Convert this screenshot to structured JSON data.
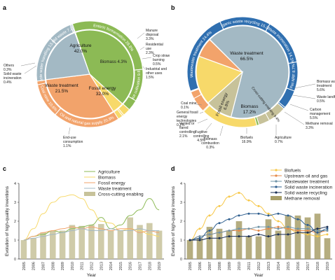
{
  "panels": [
    "a",
    "b",
    "c",
    "d"
  ],
  "chart_data": [
    {
      "panel": "a",
      "type": "pie",
      "inner": [
        {
          "label": "Agriculture",
          "value": "42.0%",
          "pct": 42.0,
          "color": "#8cba55"
        },
        {
          "label": "Biomass",
          "value": "4.3%",
          "pct": 4.3,
          "color": "#f7d96a"
        },
        {
          "label": "Fossil energy",
          "value": "32.0%",
          "pct": 32.0,
          "color": "#f2a36b"
        },
        {
          "label": "Waste treatment",
          "value": "21.5%",
          "pct": 21.5,
          "color": "#a3b9c4"
        }
      ],
      "outer": [
        {
          "label": "Enteric fermentation 28.8%",
          "pct": 28.8,
          "color": "#8cba55",
          "ring": true
        },
        {
          "label": "Rice cultivation 9.8%",
          "pct": 9.8,
          "color": "#8cba55",
          "ring": true
        },
        {
          "label": "Manure disposal 3.3%",
          "pct": 3.3,
          "color": "#8cba55"
        },
        {
          "label": "Residential use 2.3%",
          "pct": 2.3,
          "color": "#f7d96a"
        },
        {
          "label": "Crop straw burning 0.5%",
          "pct": 0.5,
          "color": "#f7d96a"
        },
        {
          "label": "Industrial and other uses 1.5%",
          "pct": 1.5,
          "color": "#f7d96a"
        },
        {
          "label": "Oil and natural gas supply 20.3%",
          "pct": 20.3,
          "color": "#f2a36b",
          "ring": true
        },
        {
          "label": "Coal mine 10.6%",
          "pct": 10.6,
          "color": "#f2a36b",
          "ring": true
        },
        {
          "label": "End-use consumption 1.1%",
          "pct": 1.1,
          "color": "#f2a36b"
        },
        {
          "label": "Waste water handling 13.8%",
          "pct": 13.8,
          "color": "#a3b9c4",
          "ring": true
        },
        {
          "label": "Solid waste 7.3%",
          "pct": 7.3,
          "color": "#a3b9c4",
          "ring": true
        },
        {
          "label": "Solid waste incineration 0.4%",
          "pct": 0.4,
          "color": "#a3b9c4"
        },
        {
          "label": "Others 0.3%",
          "pct": 0.3,
          "color": "#a3b9c4"
        }
      ],
      "callouts": {
        "manure": "Manure disposal 3.3%",
        "residential": "Residential use 2.3%",
        "crop": "Crop straw burning 0.5%",
        "industrial": "Industrial and other uses 1.5%",
        "endUse": "End-use consumption 1.1%",
        "others": "Others 0.3%",
        "solidInc": "Solid waste incineration 0.4%"
      }
    },
    {
      "panel": "b",
      "type": "pie",
      "inner": [
        {
          "label": "Waste treatment",
          "value": "66.5%",
          "pct": 66.5,
          "color": "#a3b9c4"
        },
        {
          "label": "Cross-cutting enabling",
          "value": "9.4%",
          "pct": 9.4,
          "color": "#c7c29a"
        },
        {
          "label": "Biomass",
          "value": "17.2%",
          "pct": 17.2,
          "color": "#f7d96a"
        },
        {
          "label": "Fossil energy",
          "value": "6.8%",
          "pct": 6.8,
          "color": "#f2a36b"
        }
      ],
      "outer": [
        {
          "label": "Organic waste recycling 15.2%",
          "pct": 15.2,
          "color": "#2f6fb0",
          "ring": true
        },
        {
          "label": "Waste incineration 14.1%",
          "pct": 14.1,
          "color": "#2f6fb0",
          "ring": true
        },
        {
          "label": "Pet-NRF 8.7%",
          "pct": 8.7,
          "color": "#2f6fb0",
          "ring": true
        },
        {
          "label": "Biomass waste treatment 5.6%",
          "pct": 5.6,
          "color": "#2f6fb0"
        },
        {
          "label": "Waste landfill 0.5%",
          "pct": 0.5,
          "color": "#2f6fb0"
        },
        {
          "label": "Carbon management 5.5%",
          "pct": 5.5,
          "color": "#c7c29a"
        },
        {
          "label": "Methane removal 3.3%",
          "pct": 3.3,
          "color": "#c7c29a"
        },
        {
          "label": "Agriculture 0.7%",
          "pct": 0.7,
          "color": "#8cba55"
        },
        {
          "label": "Biofuels 16.9%",
          "pct": 16.9,
          "color": "#f7d96a"
        },
        {
          "label": "Biomass combustion 0.3%",
          "pct": 0.3,
          "color": "#f7d96a"
        },
        {
          "label": "Fugitive controlling 4.5%",
          "pct": 4.5,
          "color": "#f2a36b"
        },
        {
          "label": "Vented or flared controlling 2.1%",
          "pct": 2.1,
          "color": "#f2a36b"
        },
        {
          "label": "General fossil energy technologies 0.2%",
          "pct": 0.2,
          "color": "#f2a36b"
        },
        {
          "label": "Coal mine 0.1%",
          "pct": 0.1,
          "color": "#f2a36b"
        },
        {
          "label": "Wastewater treatment 24.4%",
          "pct": 24.4,
          "color": "#2f6fb0",
          "ring": true
        }
      ],
      "callouts": {
        "bwt": "Biomass waste treatment 5.6%",
        "landfill": "Waste landfill 0.5%",
        "carbon": "Carbon management 5.5%",
        "methane": "Methane removal 3.3%",
        "agri": "Agriculture 0.7%",
        "biofuels": "Biofuels 16.9%",
        "bcomb": "Biomass combustion 0.3%",
        "fugitive": "Fugitive controlling 4.5%",
        "vented": "Vented or flared controlling 2.1%",
        "general": "General fossil energy technologies 0.2%",
        "coal": "Coal mine 0.1%"
      }
    },
    {
      "panel": "c",
      "type": "line",
      "xlabel": "Year",
      "ylabel": "Evolution of high-quality inventions",
      "categories": [
        "2005",
        "2006",
        "2007",
        "2008",
        "2009",
        "2010",
        "2011",
        "2012",
        "2013",
        "2014",
        "2015",
        "2016",
        "2017",
        "2018",
        "2019"
      ],
      "ylim": [
        0,
        4
      ],
      "yticks": [
        "0",
        "1",
        "2",
        "3",
        "4"
      ],
      "bars": {
        "name": "Cross-cutting enabling",
        "color": "#c7c29a",
        "values": [
          1.0,
          1.1,
          1.4,
          1.5,
          1.5,
          1.8,
          1.75,
          1.8,
          1.85,
          1.5,
          1.5,
          2.2,
          1.8,
          1.9,
          1.5
        ]
      },
      "series": [
        {
          "name": "Agriculture",
          "color": "#8cba55",
          "values": [
            1.0,
            1.2,
            1.3,
            1.5,
            1.4,
            1.6,
            1.7,
            1.8,
            2.2,
            1.6,
            1.8,
            2.3,
            2.6,
            3.2,
            2.6
          ]
        },
        {
          "name": "Biomass",
          "color": "#f7d96a",
          "values": [
            1.0,
            1.6,
            2.4,
            3.0,
            3.3,
            3.4,
            3.2,
            2.6,
            2.0,
            1.9,
            1.5,
            1.6,
            1.5,
            1.3,
            1.2
          ]
        },
        {
          "name": "Fossil energy",
          "color": "#f2a36b",
          "values": [
            1.0,
            1.2,
            1.4,
            1.5,
            1.6,
            1.7,
            1.6,
            1.7,
            1.6,
            1.5,
            1.6,
            1.6,
            1.4,
            1.5,
            1.4
          ]
        },
        {
          "name": "Waste treatment",
          "color": "#a3b9c4",
          "values": [
            1.0,
            1.1,
            1.2,
            1.3,
            1.4,
            1.5,
            1.6,
            1.5,
            1.5,
            1.6,
            1.5,
            1.5,
            1.6,
            1.5,
            1.5
          ]
        }
      ]
    },
    {
      "panel": "d",
      "type": "line",
      "xlabel": "Year",
      "ylabel": "Evolution of high-quality inventions",
      "categories": [
        "2005",
        "2006",
        "2007",
        "2008",
        "2009",
        "2010",
        "2011",
        "2012",
        "2013",
        "2014",
        "2015",
        "2016",
        "2017",
        "2018",
        "2019"
      ],
      "ylim": [
        0,
        4
      ],
      "yticks": [
        "0",
        "1",
        "2",
        "3",
        "4"
      ],
      "bars": {
        "name": "Methane removal",
        "color": "#a89f6a",
        "values": [
          1.0,
          1.1,
          1.7,
          1.6,
          1.5,
          2.0,
          1.2,
          1.2,
          2.1,
          1.5,
          2.3,
          2.3,
          2.2,
          2.4,
          1.1
        ]
      },
      "series": [
        {
          "name": "Biofuels",
          "color": "#f7c84a",
          "values": [
            1.0,
            1.6,
            2.3,
            2.8,
            3.3,
            3.5,
            3.1,
            2.8,
            2.4,
            2.0,
            1.6,
            1.4,
            1.3,
            1.2,
            1.3
          ]
        },
        {
          "name": "Upstream oil and gas",
          "color": "#e58a4a",
          "values": [
            1.0,
            1.2,
            1.3,
            1.4,
            1.5,
            1.5,
            1.6,
            1.5,
            1.6,
            1.7,
            1.6,
            1.5,
            1.5,
            1.4,
            1.5
          ]
        },
        {
          "name": "Wastewater treatment",
          "color": "#6f93a6",
          "values": [
            1.0,
            1.2,
            1.3,
            1.4,
            1.5,
            1.6,
            1.6,
            1.7,
            1.7,
            1.6,
            1.7,
            1.6,
            1.6,
            1.5,
            1.5
          ]
        },
        {
          "name": "Solid waste incineration",
          "color": "#2f5f8f",
          "values": [
            1.0,
            1.1,
            1.5,
            1.9,
            2.1,
            2.3,
            2.4,
            2.4,
            2.3,
            2.4,
            2.3,
            2.1,
            1.8,
            1.4,
            1.6
          ]
        },
        {
          "name": "Solid waste recycling",
          "color": "#1a2f55",
          "values": [
            1.0,
            1.0,
            1.1,
            1.1,
            1.2,
            1.2,
            1.2,
            1.3,
            1.2,
            1.3,
            1.3,
            1.4,
            1.4,
            1.6,
            1.7
          ]
        }
      ]
    }
  ]
}
